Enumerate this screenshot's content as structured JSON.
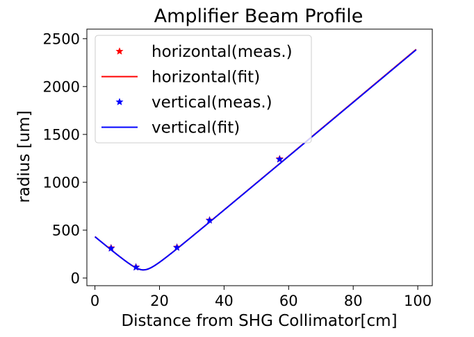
{
  "chart_data": {
    "type": "line",
    "title": "Amplifier Beam Profile",
    "xlabel": "Distance from SHG Collimator[cm]",
    "ylabel": "radius [um]",
    "xlim": [
      -2.5,
      104.5
    ],
    "ylim": [
      -80,
      2600
    ],
    "xticks": [
      0,
      20,
      40,
      60,
      80,
      100
    ],
    "yticks": [
      0,
      500,
      1000,
      1500,
      2000,
      2500
    ],
    "grid": false,
    "legend_position": "upper-left",
    "series": [
      {
        "name": "horizontal(meas.)",
        "kind": "markers",
        "marker": "star",
        "color": "#ff0000",
        "x": [
          5,
          12.7,
          25.4,
          35.5,
          57.2
        ],
        "y": [
          315,
          115,
          322,
          605,
          1245
        ]
      },
      {
        "name": "horizontal(fit)",
        "kind": "line",
        "color": "#ff0000",
        "model": {
          "w0": 85,
          "z0": 15,
          "slope": 28.25
        },
        "x_range": [
          0,
          99.5
        ]
      },
      {
        "name": "vertical(meas.)",
        "kind": "markers",
        "marker": "star",
        "color": "#0000ff",
        "x": [
          5,
          12.7,
          25.4,
          35.5,
          57.2
        ],
        "y": [
          310,
          112,
          318,
          602,
          1240
        ]
      },
      {
        "name": "vertical(fit)",
        "kind": "line",
        "color": "#0000ff",
        "model": {
          "w0": 85,
          "z0": 15,
          "slope": 28.2
        },
        "x_range": [
          0,
          99.5
        ]
      }
    ]
  }
}
